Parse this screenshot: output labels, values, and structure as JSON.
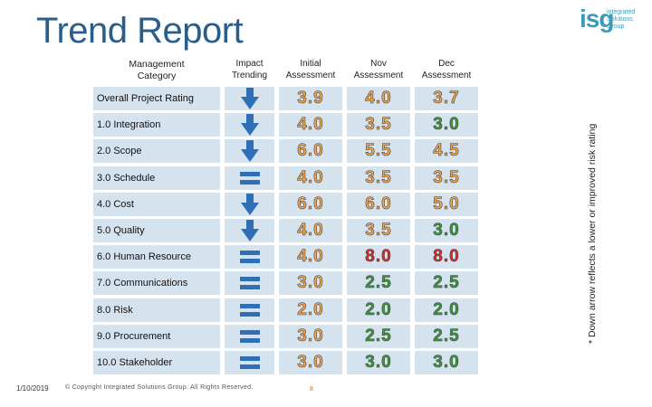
{
  "title": "Trend Report",
  "logo": {
    "mark": "isg",
    "line1": "integrated",
    "line2": "Solutions",
    "line3": "Group"
  },
  "side_note": "* Down arrow reflects a lower or improved risk rating",
  "headers": {
    "category_l1": "Management",
    "category_l2": "Category",
    "impact_l1": "Impact",
    "impact_l2": "Trending",
    "initial_l1": "Initial",
    "initial_l2": "Assessment",
    "nov_l1": "Nov",
    "nov_l2": "Assessment",
    "dec_l1": "Dec",
    "dec_l2": "Assessment"
  },
  "rows": [
    {
      "category": "Overall Project Rating",
      "trend": "down-arrow",
      "initial": "3.9",
      "nov": "4.0",
      "dec": "3.7",
      "colors": [
        "#f2a44a",
        "#f2a44a",
        "#f2a44a"
      ]
    },
    {
      "category": "1.0 Integration",
      "trend": "down-arrow",
      "initial": "4.0",
      "nov": "3.5",
      "dec": "3.0",
      "colors": [
        "#f2a44a",
        "#f2a44a",
        "#3a9a3a"
      ]
    },
    {
      "category": "2.0 Scope",
      "trend": "down-arrow",
      "initial": "6.0",
      "nov": "5.5",
      "dec": "4.5",
      "colors": [
        "#f2a44a",
        "#f2a44a",
        "#f2a44a"
      ]
    },
    {
      "category": "3.0 Schedule",
      "trend": "equal",
      "initial": "4.0",
      "nov": "3.5",
      "dec": "3.5",
      "colors": [
        "#f2a44a",
        "#f2a44a",
        "#f2a44a"
      ]
    },
    {
      "category": "4.0 Cost",
      "trend": "down-arrow",
      "initial": "6.0",
      "nov": "6.0",
      "dec": "5.0",
      "colors": [
        "#f2a44a",
        "#f2a44a",
        "#f2a44a"
      ]
    },
    {
      "category": "5.0 Quality",
      "trend": "down-arrow",
      "initial": "4.0",
      "nov": "3.5",
      "dec": "3.0",
      "colors": [
        "#f2a44a",
        "#f2a44a",
        "#3a9a3a"
      ]
    },
    {
      "category": "6.0 Human Resource",
      "trend": "equal",
      "initial": "4.0",
      "nov": "8.0",
      "dec": "8.0",
      "colors": [
        "#f2a44a",
        "#d92b2b",
        "#d92b2b"
      ]
    },
    {
      "category": "7.0 Communications",
      "trend": "equal",
      "initial": "3.0",
      "nov": "2.5",
      "dec": "2.5",
      "colors": [
        "#f2a44a",
        "#3a9a3a",
        "#3a9a3a"
      ]
    },
    {
      "category": "8.0 Risk",
      "trend": "equal",
      "initial": "2.0",
      "nov": "2.0",
      "dec": "2.0",
      "colors": [
        "#f2a44a",
        "#3a9a3a",
        "#3a9a3a"
      ]
    },
    {
      "category": "9.0 Procurement",
      "trend": "equal",
      "initial": "3.0",
      "nov": "2.5",
      "dec": "2.5",
      "colors": [
        "#f2a44a",
        "#3a9a3a",
        "#3a9a3a"
      ]
    },
    {
      "category": "10.0 Stakeholder",
      "trend": "equal",
      "initial": "3.0",
      "nov": "3.0",
      "dec": "3.0",
      "colors": [
        "#f2a44a",
        "#3a9a3a",
        "#3a9a3a"
      ]
    }
  ],
  "footer": {
    "date": "1/10/2019",
    "copyright": "© Copyright Integrated Solutions Group. All Rights Reserved.",
    "page": "8"
  },
  "colors": {
    "title": "#2a5d8a",
    "arrow": "#2f6fb8",
    "cell_bg": "#d5e3ef"
  }
}
